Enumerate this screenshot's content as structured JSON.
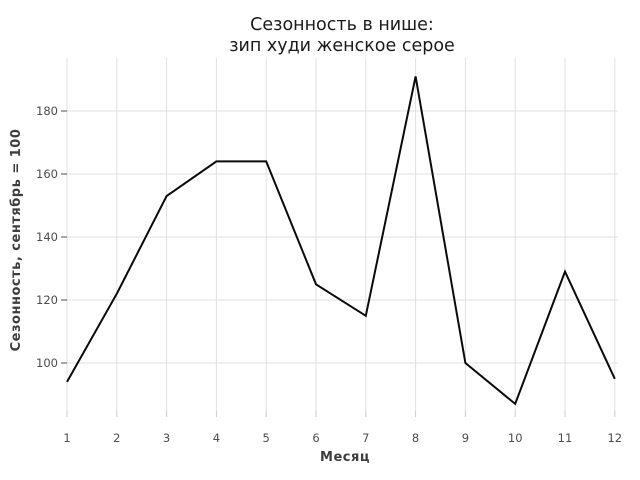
{
  "title": {
    "line1": "Сезонность в нише:",
    "line2": "зип худи женское серое"
  },
  "axes": {
    "xlabel": "Месяц",
    "ylabel": "Сезонность, сентябрь = 100",
    "xticks": [
      1,
      2,
      3,
      4,
      5,
      6,
      7,
      8,
      9,
      10,
      11,
      12
    ],
    "yticks": [
      100,
      120,
      140,
      160,
      180
    ]
  },
  "chart_data": {
    "type": "line",
    "title": "Сезонность в нише: зип худи женское серое",
    "xlabel": "Месяц",
    "ylabel": "Сезонность, сентябрь = 100",
    "x": [
      1,
      2,
      3,
      4,
      5,
      6,
      7,
      8,
      9,
      10,
      11,
      12
    ],
    "values": [
      94,
      122,
      153,
      164,
      164,
      125,
      115,
      191,
      100,
      87,
      129,
      95
    ],
    "xlim": [
      1,
      12
    ],
    "ylim": [
      85,
      197
    ],
    "grid": true,
    "legend": "none",
    "line_color": "#0a0a0a",
    "line_width": 2
  },
  "colors": {
    "background": "#ffffff",
    "gridline": "#e0e0e0",
    "x_tick_mark": "#c9c9c9",
    "y_tick_mark": "#4d4d4d",
    "tick_label": "#4d4d4d",
    "axis_title": "#3d3d3d",
    "title_text": "#1a1a1a",
    "series_line": "#0a0a0a"
  }
}
